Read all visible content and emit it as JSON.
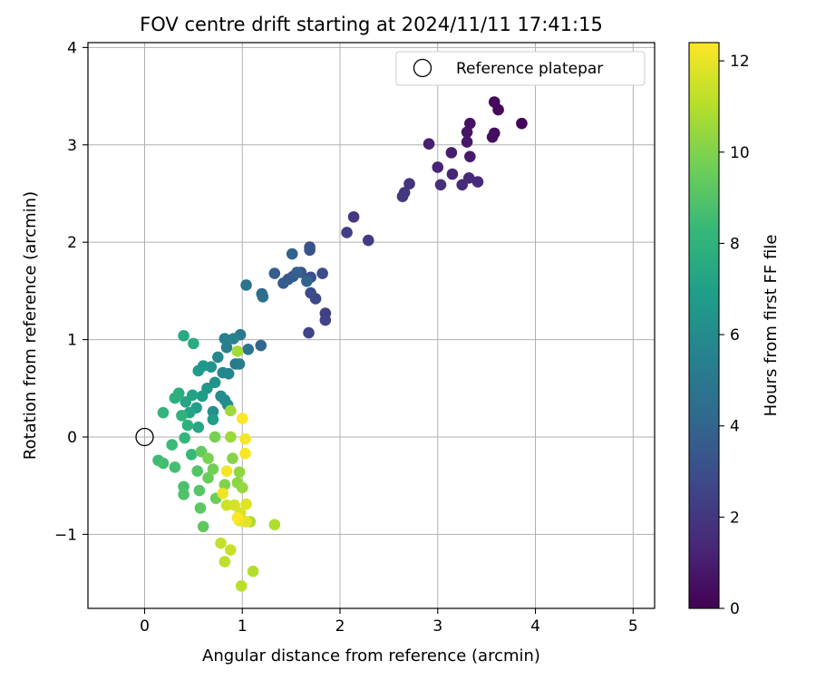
{
  "chart_data": {
    "type": "scatter",
    "title": "FOV centre drift starting at 2024/11/11 17:41:15",
    "xlabel": "Angular distance from reference (arcmin)",
    "ylabel": "Rotation from reference (arcmin)",
    "xlim": [
      -0.58,
      5.22
    ],
    "ylim": [
      -1.76,
      4.05
    ],
    "xticks": [
      0,
      1,
      2,
      3,
      4,
      5
    ],
    "yticks": [
      -1,
      0,
      1,
      2,
      3,
      4
    ],
    "grid": true,
    "legend": {
      "location": "top-right",
      "entries": [
        {
          "label": "Reference platepar",
          "marker": "open-circle"
        }
      ]
    },
    "reference_point": {
      "x": 0,
      "y": 0
    },
    "colorbar": {
      "label": "Hours from first FF file",
      "colormap": "viridis",
      "range": [
        0,
        12.4
      ],
      "ticks": [
        0,
        2,
        4,
        6,
        8,
        10,
        12
      ],
      "colors": [
        "#440154",
        "#482878",
        "#3e4989",
        "#31688e",
        "#26828e",
        "#1f9e89",
        "#35b779",
        "#6ece58",
        "#b5de2b",
        "#fde725"
      ]
    },
    "series": [
      {
        "points": [
          [
            3.86,
            3.22,
            0.1
          ],
          [
            3.62,
            3.36,
            0.2
          ],
          [
            3.58,
            3.44,
            0.3
          ],
          [
            3.58,
            3.12,
            0.4
          ],
          [
            3.56,
            3.08,
            0.5
          ],
          [
            3.33,
            3.22,
            0.6
          ],
          [
            3.3,
            3.13,
            0.7
          ],
          [
            3.3,
            3.03,
            0.8
          ],
          [
            3.33,
            2.88,
            0.9
          ],
          [
            3.14,
            2.92,
            1.0
          ],
          [
            2.91,
            3.01,
            1.1
          ],
          [
            3.0,
            2.77,
            1.2
          ],
          [
            3.15,
            2.7,
            1.3
          ],
          [
            3.32,
            2.66,
            1.4
          ],
          [
            3.41,
            2.62,
            1.5
          ],
          [
            3.25,
            2.59,
            1.6
          ],
          [
            3.03,
            2.59,
            1.7
          ],
          [
            2.71,
            2.6,
            1.8
          ],
          [
            2.66,
            2.51,
            1.9
          ],
          [
            2.64,
            2.47,
            2.0
          ],
          [
            2.14,
            2.26,
            2.1
          ],
          [
            2.29,
            2.02,
            2.2
          ],
          [
            2.07,
            2.1,
            2.3
          ],
          [
            1.85,
            1.27,
            2.4
          ],
          [
            1.85,
            1.2,
            2.5
          ],
          [
            1.68,
            1.07,
            2.6
          ],
          [
            1.75,
            1.42,
            2.7
          ],
          [
            1.7,
            1.48,
            2.8
          ],
          [
            1.82,
            1.68,
            2.9
          ],
          [
            1.7,
            1.64,
            3.0
          ],
          [
            1.69,
            1.95,
            3.1
          ],
          [
            1.69,
            1.92,
            3.2
          ],
          [
            1.6,
            1.69,
            3.3
          ],
          [
            1.52,
            1.65,
            3.4
          ],
          [
            1.47,
            1.62,
            3.5
          ],
          [
            1.42,
            1.58,
            3.6
          ],
          [
            1.33,
            1.68,
            3.7
          ],
          [
            1.56,
            1.69,
            3.8
          ],
          [
            1.51,
            1.88,
            3.9
          ],
          [
            1.66,
            1.6,
            4.0
          ],
          [
            1.19,
            0.94,
            4.1
          ],
          [
            1.2,
            1.47,
            4.3
          ],
          [
            1.21,
            1.44,
            4.5
          ],
          [
            1.04,
            1.56,
            4.7
          ],
          [
            1.06,
            0.9,
            4.8
          ],
          [
            0.98,
            1.05,
            5.0
          ],
          [
            0.93,
            0.75,
            5.1
          ],
          [
            0.97,
            0.75,
            5.2
          ],
          [
            0.84,
            0.92,
            5.3
          ],
          [
            0.82,
            1.01,
            5.4
          ],
          [
            0.91,
            1.01,
            5.5
          ],
          [
            0.86,
            0.65,
            5.6
          ],
          [
            0.8,
            0.66,
            5.7
          ],
          [
            0.75,
            0.82,
            5.8
          ],
          [
            0.82,
            0.38,
            5.9
          ],
          [
            0.78,
            0.42,
            6.0
          ],
          [
            0.85,
            0.33,
            6.1
          ],
          [
            0.7,
            0.26,
            6.2
          ],
          [
            0.72,
            0.56,
            6.3
          ],
          [
            0.68,
            0.72,
            6.4
          ],
          [
            0.64,
            0.5,
            6.5
          ],
          [
            0.6,
            0.73,
            6.6
          ],
          [
            0.55,
            0.68,
            6.7
          ],
          [
            0.59,
            0.42,
            6.8
          ],
          [
            0.7,
            0.18,
            6.9
          ],
          [
            0.53,
            0.3,
            7.0
          ],
          [
            0.49,
            0.43,
            7.1
          ],
          [
            0.46,
            0.25,
            7.2
          ],
          [
            0.42,
            0.36,
            7.3
          ],
          [
            0.55,
            0.1,
            7.4
          ],
          [
            0.4,
            1.04,
            7.5
          ],
          [
            0.5,
            0.96,
            7.6
          ],
          [
            0.35,
            0.45,
            7.7
          ],
          [
            0.31,
            0.4,
            7.8
          ],
          [
            0.44,
            0.12,
            7.9
          ],
          [
            0.38,
            0.22,
            8.0
          ],
          [
            0.19,
            0.25,
            8.1
          ],
          [
            0.41,
            -0.01,
            8.2
          ],
          [
            0.48,
            -0.18,
            8.3
          ],
          [
            0.28,
            -0.08,
            8.4
          ],
          [
            0.14,
            -0.24,
            8.5
          ],
          [
            0.19,
            -0.27,
            8.6
          ],
          [
            0.31,
            -0.31,
            8.7
          ],
          [
            0.4,
            -0.51,
            8.8
          ],
          [
            0.4,
            -0.59,
            8.9
          ],
          [
            0.54,
            -0.35,
            9.0
          ],
          [
            0.56,
            -0.55,
            9.1
          ],
          [
            0.57,
            -0.73,
            9.2
          ],
          [
            0.6,
            -0.92,
            9.3
          ],
          [
            0.58,
            -0.15,
            9.4
          ],
          [
            0.65,
            -0.42,
            9.5
          ],
          [
            0.73,
            -0.63,
            9.6
          ],
          [
            0.7,
            -0.33,
            9.7
          ],
          [
            0.72,
            0.0,
            9.8
          ],
          [
            0.65,
            -0.22,
            9.9
          ],
          [
            0.82,
            -0.49,
            10.0
          ],
          [
            0.9,
            -0.22,
            10.1
          ],
          [
            0.95,
            -0.47,
            10.2
          ],
          [
            0.97,
            -0.36,
            10.3
          ],
          [
            1.0,
            -0.52,
            10.4
          ],
          [
            0.88,
            0.0,
            10.5
          ],
          [
            0.88,
            0.27,
            10.6
          ],
          [
            0.95,
            0.88,
            10.7
          ],
          [
            1.08,
            -0.87,
            10.8
          ],
          [
            1.33,
            -0.9,
            10.9
          ],
          [
            1.11,
            -1.38,
            11.0
          ],
          [
            0.99,
            -1.53,
            11.1
          ],
          [
            0.82,
            -1.28,
            11.2
          ],
          [
            0.78,
            -1.09,
            11.3
          ],
          [
            0.88,
            -1.16,
            11.4
          ],
          [
            0.84,
            -0.7,
            11.5
          ],
          [
            0.92,
            -0.7,
            11.6
          ],
          [
            0.98,
            -0.78,
            11.7
          ],
          [
            1.04,
            -0.69,
            11.8
          ],
          [
            1.04,
            -0.87,
            11.9
          ],
          [
            0.97,
            -0.86,
            12.0
          ],
          [
            0.8,
            -0.58,
            12.1
          ],
          [
            0.84,
            -0.35,
            12.2
          ],
          [
            1.03,
            -0.02,
            12.25
          ],
          [
            1.03,
            -0.17,
            12.3
          ],
          [
            1.0,
            0.19,
            12.35
          ],
          [
            0.95,
            -0.83,
            12.4
          ]
        ]
      }
    ]
  }
}
